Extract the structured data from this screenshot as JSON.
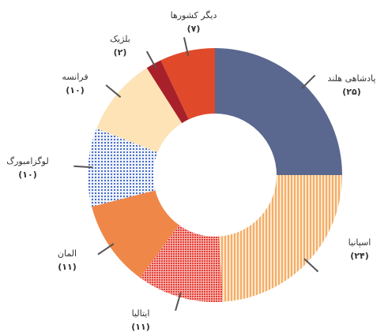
{
  "chart_data": {
    "type": "donut",
    "categories": [
      "پادشاهی هلند",
      "اسپانیا",
      "ایتالیا",
      "المان",
      "لوگزامبورگ",
      "فرانسه",
      "بلژیک",
      "دیگر کشورها"
    ],
    "values": [
      25,
      24,
      11,
      11,
      10,
      10,
      2,
      7
    ],
    "value_labels": [
      "(۲۵)",
      "(۲۴)",
      "(۱۱)",
      "(۱۱)",
      "(۱۰)",
      "(۱۰)",
      "(۲)",
      "(۷)"
    ],
    "colors": [
      "#5a6890",
      "url(#stripes)",
      "url(#grid)",
      "#ef8748",
      "url(#dots)",
      "#fde3b6",
      "#a8202a",
      "#e04a2a"
    ]
  }
}
